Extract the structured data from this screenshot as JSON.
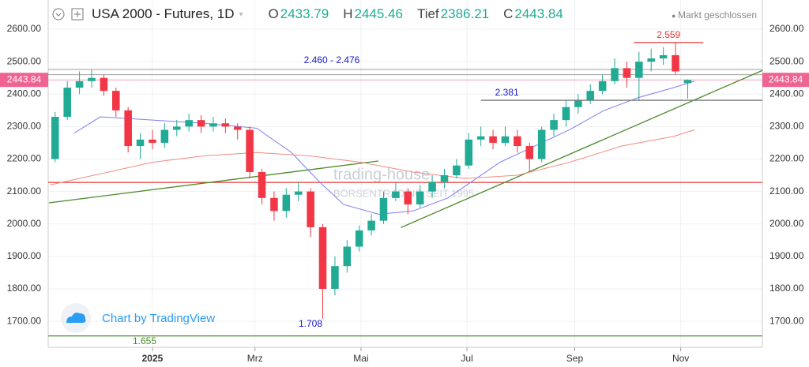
{
  "chart_data": {
    "type": "candlestick",
    "title": "USA 2000 - Futures, 1D",
    "ohlc_header": {
      "labels": [
        "O",
        "H",
        "Tief",
        "C"
      ],
      "values": [
        2433.79,
        2445.46,
        2386.21,
        2443.84
      ]
    },
    "status": "Markt geschlossen",
    "last_price": 2443.84,
    "last_price_color": "#f06292",
    "up_color": "#22ab94",
    "down_color": "#f23645",
    "x": [
      -56,
      -49,
      -42,
      -35,
      -28,
      -21,
      -14,
      -7,
      0,
      7,
      14,
      21,
      28,
      35,
      42,
      49,
      56,
      63,
      70,
      77,
      84,
      91,
      98,
      105,
      112,
      119,
      126,
      133,
      140,
      147,
      154,
      161,
      168,
      175,
      182,
      189,
      196,
      203,
      210,
      217,
      224,
      231,
      238,
      245,
      252,
      259,
      266,
      273,
      280,
      287,
      294,
      301,
      308
    ],
    "open": [
      2200,
      2330,
      2420,
      2440,
      2450,
      2410,
      2350,
      2240,
      2260,
      2250,
      2290,
      2300,
      2320,
      2300,
      2310,
      2300,
      2290,
      2160,
      2080,
      2040,
      2090,
      2100,
      1990,
      1800,
      1870,
      1930,
      1980,
      2010,
      2080,
      2100,
      2060,
      2100,
      2130,
      2150,
      2180,
      2260,
      2270,
      2250,
      2270,
      2240,
      2200,
      2290,
      2320,
      2360,
      2380,
      2410,
      2440,
      2480,
      2450,
      2500,
      2510,
      2520,
      2433.79
    ],
    "high": [
      2345,
      2440,
      2470,
      2475,
      2460,
      2420,
      2360,
      2280,
      2290,
      2310,
      2320,
      2340,
      2335,
      2330,
      2325,
      2310,
      2300,
      2170,
      2100,
      2110,
      2130,
      2110,
      2000,
      1900,
      1950,
      1995,
      2030,
      2100,
      2130,
      2110,
      2120,
      2150,
      2170,
      2200,
      2280,
      2300,
      2290,
      2300,
      2290,
      2250,
      2300,
      2340,
      2380,
      2400,
      2430,
      2460,
      2510,
      2500,
      2530,
      2540,
      2545,
      2559,
      2445.46
    ],
    "low": [
      2190,
      2320,
      2400,
      2420,
      2395,
      2330,
      2220,
      2200,
      2230,
      2235,
      2270,
      2285,
      2280,
      2285,
      2280,
      2260,
      2140,
      2060,
      2010,
      2020,
      2070,
      1960,
      1708,
      1780,
      1850,
      1915,
      1965,
      2000,
      2070,
      2030,
      2050,
      2080,
      2110,
      2140,
      2170,
      2240,
      2230,
      2240,
      2220,
      2160,
      2190,
      2270,
      2300,
      2340,
      2370,
      2400,
      2430,
      2420,
      2381,
      2470,
      2490,
      2460,
      2386.21
    ],
    "close": [
      2330,
      2420,
      2440,
      2450,
      2410,
      2350,
      2240,
      2260,
      2250,
      2290,
      2300,
      2320,
      2300,
      2310,
      2300,
      2290,
      2160,
      2080,
      2040,
      2090,
      2100,
      1990,
      1800,
      1870,
      1930,
      1980,
      2010,
      2080,
      2100,
      2060,
      2100,
      2130,
      2150,
      2180,
      2260,
      2270,
      2250,
      2270,
      2240,
      2200,
      2290,
      2320,
      2360,
      2380,
      2410,
      2440,
      2480,
      2450,
      2500,
      2510,
      2520,
      2470,
      2443.84
    ],
    "xlim": [
      -60,
      351
    ],
    "xticks": [
      {
        "value": 0,
        "label": "2025"
      },
      {
        "value": 59,
        "label": "Mrz"
      },
      {
        "value": 120,
        "label": "Mai"
      },
      {
        "value": 181,
        "label": "Jul"
      },
      {
        "value": 243,
        "label": "Sep"
      },
      {
        "value": 304,
        "label": "Nov"
      }
    ],
    "ylim": [
      1620,
      2690
    ],
    "yticks": [
      {
        "value": 1700,
        "label": "1700.00"
      },
      {
        "value": 1800,
        "label": "1800.00"
      },
      {
        "value": 1900,
        "label": "1900.00"
      },
      {
        "value": 2000,
        "label": "2000.00"
      },
      {
        "value": 2100,
        "label": "2100.00"
      },
      {
        "value": 2200,
        "label": "2200.00"
      },
      {
        "value": 2300,
        "label": "2300.00"
      },
      {
        "value": 2400,
        "label": "2400.00"
      },
      {
        "value": 2500,
        "label": "2500.00"
      },
      {
        "value": 2600,
        "label": "2600.00"
      }
    ],
    "grid": true,
    "moving_averages": [
      {
        "color": "#7e7ef0",
        "x": [
          -45,
          -30,
          0,
          30,
          60,
          80,
          96,
          110,
          130,
          150,
          170,
          200,
          220,
          240,
          260,
          280,
          300,
          312
        ],
        "values": [
          2280,
          2330,
          2320,
          2310,
          2295,
          2220,
          2130,
          2060,
          2030,
          2040,
          2080,
          2190,
          2240,
          2290,
          2350,
          2390,
          2420,
          2440
        ]
      },
      {
        "color": "#f28b82",
        "x": [
          -59,
          0,
          30,
          60,
          90,
          120,
          150,
          180,
          210,
          240,
          270,
          300,
          312
        ],
        "values": [
          2120,
          2190,
          2210,
          2220,
          2210,
          2190,
          2160,
          2140,
          2150,
          2190,
          2240,
          2270,
          2290
        ]
      }
    ],
    "zone": {
      "low": 2460,
      "high": 2476,
      "label": "2.460 - 2.476",
      "color": "#9e9e9e",
      "label_color": "#1a1ad0"
    },
    "horizontal_lines": [
      {
        "value": 2128,
        "color": "#e53935"
      },
      {
        "value": 1655,
        "color": "#4a8a2a"
      }
    ],
    "annotations": [
      {
        "value": 2559,
        "label": "2.559",
        "x": [
          277,
          317
        ],
        "color": "#e53935"
      },
      {
        "value": 2381,
        "label": "2.381",
        "x": [
          189,
          351
        ],
        "color": "#1a1ad0"
      },
      {
        "value": 1708,
        "label": "1.708",
        "color": "#1a1ad0"
      },
      {
        "value": 1655,
        "label": "1.655",
        "color": "#4a8a2a"
      }
    ],
    "trend_lines": [
      {
        "color": "#4a8a2a",
        "x": [
          -59.5,
          130
        ],
        "values": [
          2065,
          2194
        ]
      },
      {
        "color": "#4a8a2a",
        "x": [
          143,
          351
        ],
        "values": [
          1989,
          2473
        ]
      }
    ],
    "watermark": [
      "trading-house",
      "BÖRSENTRADING SEIT 1995"
    ],
    "credit": "Chart by TradingView"
  }
}
